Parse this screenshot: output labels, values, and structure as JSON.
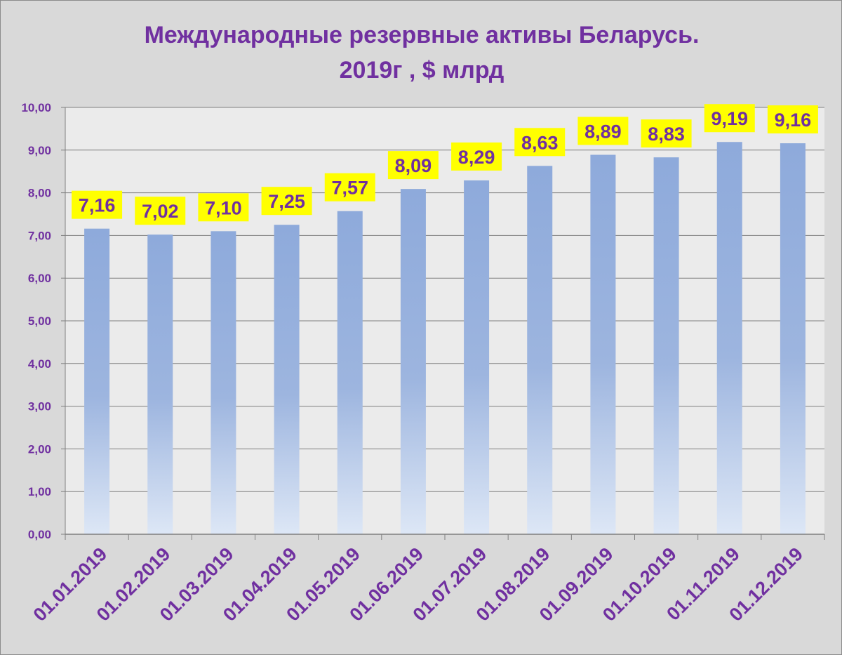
{
  "chart_data": {
    "type": "bar",
    "title": "Международные резервные активы Беларусь.",
    "subtitle": "2019г , $ млрд",
    "categories": [
      "01.01.2019",
      "01.02.2019",
      "01.03.2019",
      "01.04.2019",
      "01.05.2019",
      "01.06.2019",
      "01.07.2019",
      "01.08.2019",
      "01.09.2019",
      "01.10.2019",
      "01.11.2019",
      "01.12.2019"
    ],
    "values": [
      7.16,
      7.02,
      7.1,
      7.25,
      7.57,
      8.09,
      8.29,
      8.63,
      8.89,
      8.83,
      9.19,
      9.16
    ],
    "data_labels": [
      "7,16",
      "7,02",
      "7,10",
      "7,25",
      "7,57",
      "8,09",
      "8,29",
      "8,63",
      "8,89",
      "8,83",
      "9,19",
      "9,16"
    ],
    "y_ticks": [
      "0,00",
      "1,00",
      "2,00",
      "3,00",
      "4,00",
      "5,00",
      "6,00",
      "7,00",
      "8,00",
      "9,00",
      "10,00"
    ],
    "ylim": [
      0,
      10
    ],
    "xlabel": "",
    "ylabel": "",
    "grid": true,
    "legend": "none",
    "colors": {
      "bar_top": "#8eaadb",
      "bar_bottom": "#dde7f6",
      "label_background": "#ffff00",
      "text": "#7030a0",
      "plot_background": "#ebebeb",
      "frame_background": "#d9d9d9",
      "gridline": "#7f7f7f"
    }
  }
}
